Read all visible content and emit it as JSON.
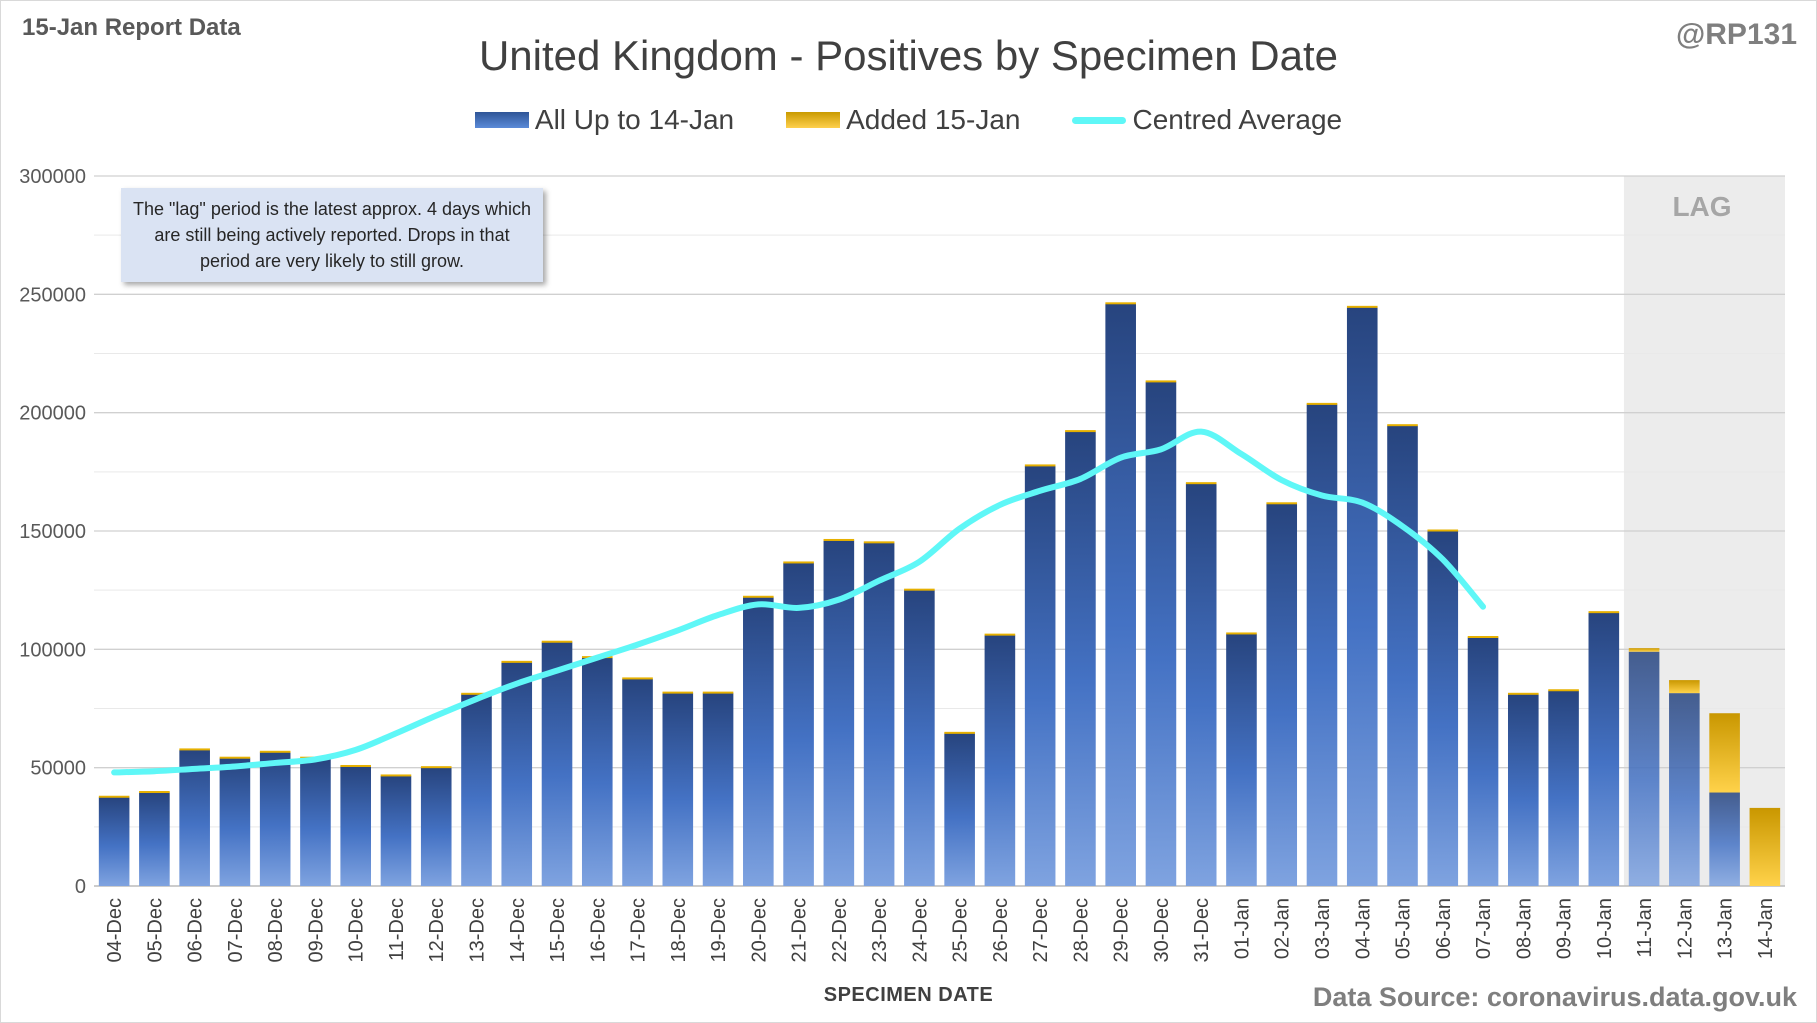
{
  "report_tag": "15-Jan Report Data",
  "handle": "@RP131",
  "source": "Data Source: coronavirus.data.gov.uk",
  "note": "The \"lag\" period is the latest approx. 4 days which are still being actively reported.  Drops in that period are very likely to still grow.",
  "lag_label": "LAG",
  "colors": {
    "base": "#2f5597",
    "added": "#e6b000",
    "average": "#5ff7f7",
    "lag_band": "#ececec"
  },
  "chart_data": {
    "type": "bar",
    "title": "United Kingdom - Positives by Specimen Date",
    "xlabel": "SPECIMEN DATE",
    "ylabel": "",
    "ylim": [
      0,
      300000
    ],
    "yticks": [
      0,
      50000,
      100000,
      150000,
      200000,
      250000,
      300000
    ],
    "legend_position": "top",
    "grid": true,
    "stacked": true,
    "categories": [
      "04-Dec",
      "05-Dec",
      "06-Dec",
      "07-Dec",
      "08-Dec",
      "09-Dec",
      "10-Dec",
      "11-Dec",
      "12-Dec",
      "13-Dec",
      "14-Dec",
      "15-Dec",
      "16-Dec",
      "17-Dec",
      "18-Dec",
      "19-Dec",
      "20-Dec",
      "21-Dec",
      "22-Dec",
      "23-Dec",
      "24-Dec",
      "25-Dec",
      "26-Dec",
      "27-Dec",
      "28-Dec",
      "29-Dec",
      "30-Dec",
      "31-Dec",
      "01-Jan",
      "02-Jan",
      "03-Jan",
      "04-Jan",
      "05-Jan",
      "06-Jan",
      "07-Jan",
      "08-Jan",
      "09-Jan",
      "10-Jan",
      "11-Jan",
      "12-Jan",
      "13-Jan",
      "14-Jan"
    ],
    "lag_categories": [
      "11-Jan",
      "12-Jan",
      "13-Jan",
      "14-Jan"
    ],
    "series": [
      {
        "name": "All Up to 14-Jan",
        "kind": "bar",
        "values": [
          37500,
          39500,
          57500,
          54000,
          56500,
          54000,
          50500,
          46500,
          50000,
          81000,
          94500,
          103000,
          96500,
          87500,
          81500,
          81500,
          122000,
          136500,
          146000,
          145000,
          125000,
          64500,
          106000,
          177500,
          192000,
          246000,
          213000,
          170000,
          106500,
          161500,
          203500,
          244500,
          194500,
          150000,
          105000,
          81000,
          82500,
          115500,
          99000,
          81500,
          39500,
          0
        ]
      },
      {
        "name": "Added 15-Jan",
        "kind": "bar",
        "values": [
          0,
          0,
          0,
          0,
          0,
          0,
          0,
          0,
          0,
          0,
          0,
          0,
          0,
          0,
          0,
          0,
          0,
          0,
          0,
          0,
          0,
          0,
          0,
          0,
          0,
          0,
          0,
          0,
          0,
          0,
          0,
          0,
          0,
          0,
          0,
          0,
          0,
          0,
          1500,
          5500,
          33500,
          33000
        ]
      },
      {
        "name": "Centred Average",
        "kind": "line",
        "values": [
          48000,
          48500,
          49500,
          50500,
          52000,
          53500,
          57500,
          64500,
          72000,
          79000,
          85500,
          91000,
          96500,
          102000,
          108000,
          114500,
          119000,
          117500,
          121000,
          129000,
          137000,
          151000,
          161000,
          167000,
          172000,
          181000,
          184500,
          192000,
          182500,
          171500,
          165000,
          162000,
          152000,
          138000,
          118000,
          null,
          null,
          null,
          null,
          null,
          null,
          null
        ]
      }
    ]
  }
}
